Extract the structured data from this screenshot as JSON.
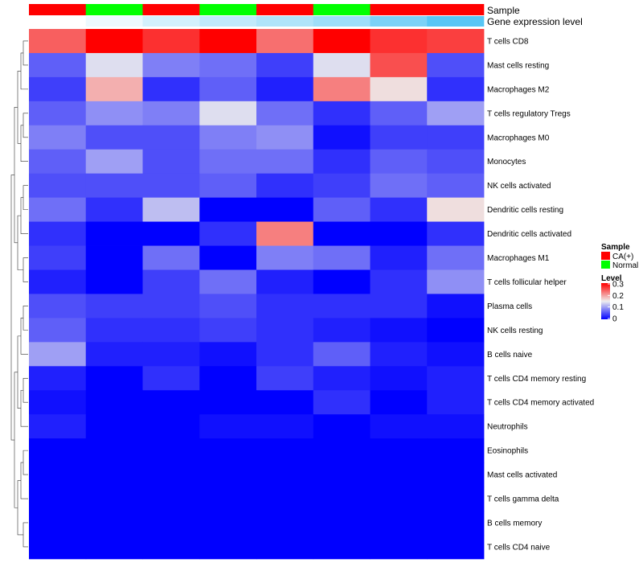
{
  "chart_data": {
    "type": "heatmap",
    "title": "",
    "annotation_labels": {
      "sample": "Sample",
      "expression": "Gene expression level"
    },
    "columns": [
      {
        "sample": "CA(+)",
        "expression": 0.03
      },
      {
        "sample": "Normal",
        "expression": 0.05
      },
      {
        "sample": "CA(+)",
        "expression": 0.08
      },
      {
        "sample": "Normal",
        "expression": 0.1
      },
      {
        "sample": "CA(+)",
        "expression": 0.12
      },
      {
        "sample": "Normal",
        "expression": 0.14
      },
      {
        "sample": "CA(+)",
        "expression": 0.18
      },
      {
        "sample": "CA(+)",
        "expression": 0.22
      }
    ],
    "sample_colors": {
      "CA(+)": "#ff0000",
      "Normal": "#00ff00"
    },
    "expression_colors": [
      "#ffffff",
      "#58c6f5"
    ],
    "rows": [
      "T cells CD8",
      "Mast cells resting",
      "Macrophages M2",
      "T cells regulatory  Tregs",
      "Macrophages M0",
      "Monocytes",
      "NK cells activated",
      "Dendritic cells resting",
      "Dendritic cells activated",
      "Macrophages M1",
      "T cells follicular helper",
      "Plasma cells",
      "NK cells resting",
      "B cells naive",
      "T cells CD4 memory resting",
      "T cells CD4 memory activated",
      "Neutrophils",
      "Eosinophils",
      "Mast cells activated",
      "T cells gamma delta",
      "B cells memory",
      "T cells CD4 naive"
    ],
    "values": [
      [
        0.24,
        0.3,
        0.27,
        0.3,
        0.23,
        0.3,
        0.27,
        0.26
      ],
      [
        0.06,
        0.14,
        0.08,
        0.07,
        0.04,
        0.14,
        0.25,
        0.05
      ],
      [
        0.04,
        0.19,
        0.03,
        0.06,
        0.02,
        0.22,
        0.16,
        0.03
      ],
      [
        0.06,
        0.09,
        0.08,
        0.14,
        0.07,
        0.03,
        0.06,
        0.1
      ],
      [
        0.08,
        0.05,
        0.05,
        0.08,
        0.09,
        0.01,
        0.04,
        0.04
      ],
      [
        0.06,
        0.1,
        0.05,
        0.07,
        0.07,
        0.03,
        0.06,
        0.05
      ],
      [
        0.05,
        0.05,
        0.05,
        0.06,
        0.03,
        0.04,
        0.07,
        0.06
      ],
      [
        0.07,
        0.03,
        0.12,
        0.0,
        0.0,
        0.06,
        0.03,
        0.16
      ],
      [
        0.03,
        0.0,
        0.0,
        0.03,
        0.22,
        0.0,
        0.0,
        0.03
      ],
      [
        0.04,
        0.0,
        0.07,
        0.0,
        0.08,
        0.07,
        0.02,
        0.07
      ],
      [
        0.02,
        0.0,
        0.04,
        0.07,
        0.02,
        0.0,
        0.03,
        0.09
      ],
      [
        0.05,
        0.04,
        0.04,
        0.05,
        0.03,
        0.03,
        0.03,
        0.01
      ],
      [
        0.06,
        0.03,
        0.03,
        0.04,
        0.03,
        0.02,
        0.01,
        0.0
      ],
      [
        0.1,
        0.02,
        0.02,
        0.01,
        0.03,
        0.06,
        0.02,
        0.01
      ],
      [
        0.02,
        0.0,
        0.03,
        0.0,
        0.04,
        0.02,
        0.01,
        0.02
      ],
      [
        0.01,
        0.0,
        0.0,
        0.0,
        0.0,
        0.03,
        0.0,
        0.02
      ],
      [
        0.02,
        0.0,
        0.0,
        0.01,
        0.01,
        0.0,
        0.01,
        0.01
      ],
      [
        0.0,
        0.0,
        0.0,
        0.0,
        0.0,
        0.0,
        0.0,
        0.0
      ],
      [
        0.0,
        0.0,
        0.0,
        0.0,
        0.0,
        0.0,
        0.0,
        0.0
      ],
      [
        0.0,
        0.0,
        0.0,
        0.0,
        0.0,
        0.0,
        0.0,
        0.0
      ],
      [
        0.0,
        0.0,
        0.0,
        0.0,
        0.0,
        0.0,
        0.0,
        0.0
      ],
      [
        0.0,
        0.0,
        0.0,
        0.0,
        0.0,
        0.0,
        0.0,
        0.0
      ]
    ],
    "color_scale": {
      "low": "#0000ff",
      "mid": "#eeeeee",
      "high": "#ff0000",
      "min": 0,
      "max": 0.3
    },
    "legend": {
      "sample_title": "Sample",
      "sample_entries": [
        "CA(+)",
        "Normal"
      ],
      "level_title": "Level",
      "level_ticks": [
        "0.3",
        "0.2",
        "0.1",
        "0"
      ],
      "position": "right"
    },
    "dendrogram": "row"
  }
}
